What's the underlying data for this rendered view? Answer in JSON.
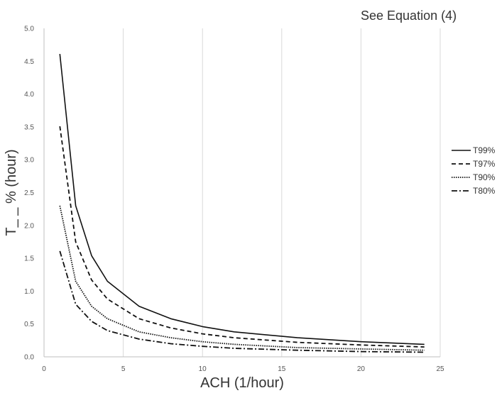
{
  "note": "See Equation (4)",
  "chart_data": {
    "type": "line",
    "xlabel": "ACH (1/hour)",
    "ylabel": "T_ _ % (hour)",
    "xlim": [
      0,
      25
    ],
    "ylim": [
      0,
      5
    ],
    "xticks": [
      0,
      5,
      10,
      15,
      20,
      25
    ],
    "yticks": [
      "0.0",
      "0.5",
      "1.0",
      "1.5",
      "2.0",
      "2.5",
      "3.0",
      "3.5",
      "4.0",
      "4.5",
      "5.0"
    ],
    "grid": "vertical",
    "legend_position": "right",
    "x": [
      1,
      2,
      3,
      4,
      6,
      8,
      10,
      12,
      16,
      20,
      24
    ],
    "series": [
      {
        "name": "T99%",
        "style": "solid",
        "values": [
          4.61,
          2.3,
          1.54,
          1.15,
          0.77,
          0.58,
          0.46,
          0.38,
          0.29,
          0.23,
          0.19
        ]
      },
      {
        "name": "T97%",
        "style": "dashed",
        "values": [
          3.51,
          1.75,
          1.17,
          0.88,
          0.58,
          0.44,
          0.35,
          0.29,
          0.22,
          0.18,
          0.15
        ]
      },
      {
        "name": "T90%",
        "style": "dotted",
        "values": [
          2.3,
          1.15,
          0.77,
          0.58,
          0.38,
          0.29,
          0.23,
          0.19,
          0.14,
          0.12,
          0.1
        ]
      },
      {
        "name": "T80%",
        "style": "dashdot",
        "values": [
          1.61,
          0.8,
          0.54,
          0.4,
          0.27,
          0.2,
          0.16,
          0.13,
          0.1,
          0.08,
          0.07
        ]
      }
    ]
  }
}
